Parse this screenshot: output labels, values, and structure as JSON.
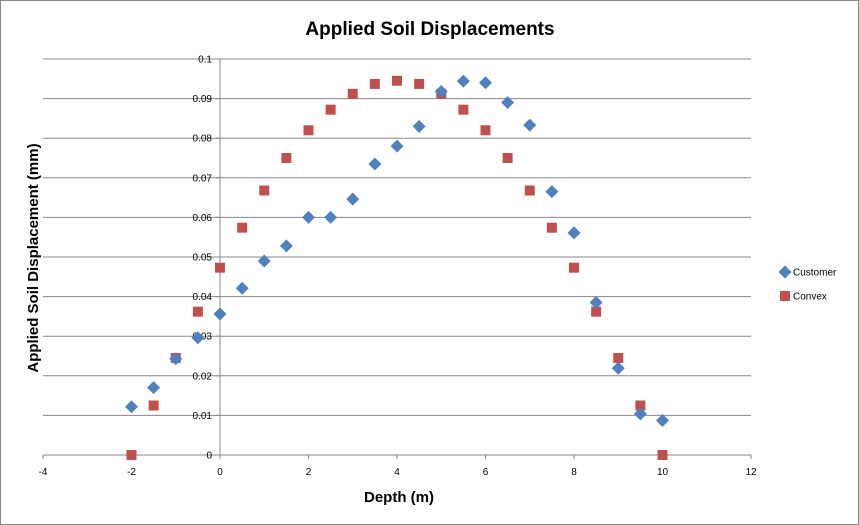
{
  "chart_data": {
    "type": "scatter",
    "title": "Applied Soil Displacements",
    "xlabel": "Depth (m)",
    "ylabel": "Applied Soil Displacement (mm)",
    "xlim": [
      -4,
      12
    ],
    "ylim": [
      0,
      0.1
    ],
    "x_ticks": [
      "-4",
      "-2",
      "0",
      "2",
      "4",
      "6",
      "8",
      "10",
      "12"
    ],
    "y_ticks": [
      "0",
      "0.01",
      "0.02",
      "0.03",
      "0.04",
      "0.05",
      "0.06",
      "0.07",
      "0.08",
      "0.09",
      "0.1"
    ],
    "grid": "horizontal",
    "legend_position": "right",
    "series": [
      {
        "name": "Customer",
        "marker": "diamond",
        "color": "#4F81BD",
        "points": [
          [
            -2,
            0.0122
          ],
          [
            -1.5,
            0.017
          ],
          [
            -1,
            0.0243
          ],
          [
            -0.5,
            0.0296
          ],
          [
            0,
            0.0356
          ],
          [
            0.5,
            0.0421
          ],
          [
            1,
            0.049
          ],
          [
            1.5,
            0.0528
          ],
          [
            2,
            0.06
          ],
          [
            2.5,
            0.06
          ],
          [
            3,
            0.0646
          ],
          [
            3.5,
            0.0735
          ],
          [
            4,
            0.078
          ],
          [
            4.5,
            0.083
          ],
          [
            5,
            0.0918
          ],
          [
            5.5,
            0.0944
          ],
          [
            6,
            0.094
          ],
          [
            6.5,
            0.089
          ],
          [
            7,
            0.0833
          ],
          [
            7.5,
            0.0665
          ],
          [
            8,
            0.0561
          ],
          [
            8.5,
            0.0385
          ],
          [
            9,
            0.0219
          ],
          [
            9.5,
            0.0104
          ],
          [
            10,
            0.0087
          ]
        ]
      },
      {
        "name": "Convex",
        "marker": "square",
        "color": "#C0504D",
        "points": [
          [
            -2,
            0.0
          ],
          [
            -1.5,
            0.0125
          ],
          [
            -1,
            0.0245
          ],
          [
            -0.5,
            0.0362
          ],
          [
            0,
            0.0473
          ],
          [
            0.5,
            0.0574
          ],
          [
            1,
            0.0668
          ],
          [
            1.5,
            0.075
          ],
          [
            2,
            0.082
          ],
          [
            2.5,
            0.0872
          ],
          [
            3,
            0.0912
          ],
          [
            3.5,
            0.0937
          ],
          [
            4,
            0.0945
          ],
          [
            4.5,
            0.0937
          ],
          [
            5,
            0.0912
          ],
          [
            5.5,
            0.0872
          ],
          [
            6,
            0.082
          ],
          [
            6.5,
            0.075
          ],
          [
            7,
            0.0668
          ],
          [
            7.5,
            0.0574
          ],
          [
            8,
            0.0473
          ],
          [
            8.5,
            0.0362
          ],
          [
            9,
            0.0245
          ],
          [
            9.5,
            0.0125
          ],
          [
            10,
            0.0
          ]
        ]
      }
    ]
  }
}
